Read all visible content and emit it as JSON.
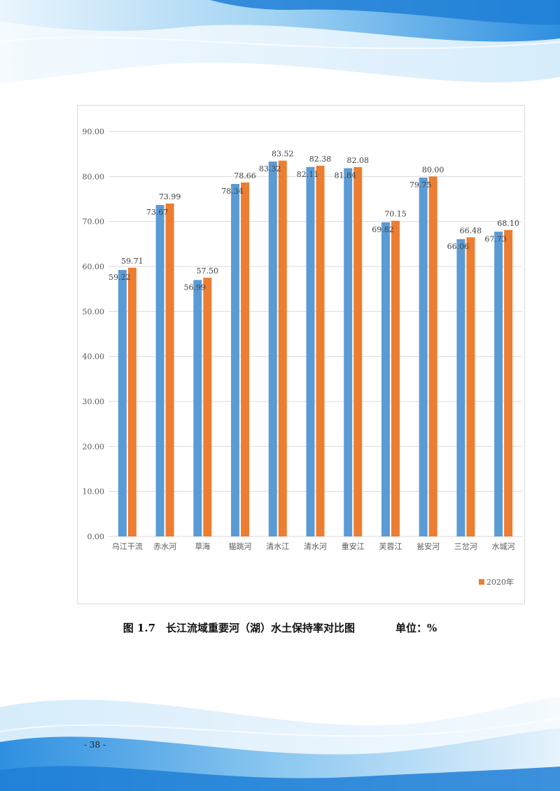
{
  "caption": {
    "figure": "图 1.7　长江流域重要河（湖）水土保持率对比图",
    "unit": "单位：%"
  },
  "page_number": "- 38 -",
  "colors": {
    "series_1": "#5b9bd5",
    "series_2": "#ed7d31",
    "gridline": "#d9d9d9",
    "wave_light": "#dbeefb",
    "wave_mid": "#8cc8f0",
    "wave_dark": "#2f8fe0"
  },
  "chart_data": {
    "type": "bar",
    "categories": [
      "乌江干流",
      "赤水河",
      "草海",
      "猫跳河",
      "清水江",
      "清水河",
      "重安江",
      "芙蓉江",
      "瓮安河",
      "三岔河",
      "水城河"
    ],
    "series": [
      {
        "values": [
          59.22,
          73.67,
          56.99,
          78.34,
          83.32,
          82.11,
          81.84,
          69.82,
          79.75,
          66.06,
          67.73
        ]
      },
      {
        "name": "2020年",
        "values": [
          59.71,
          73.99,
          57.5,
          78.66,
          83.52,
          82.38,
          82.08,
          70.15,
          80.0,
          66.48,
          68.1
        ]
      }
    ],
    "yticks": [
      "0.00",
      "10.00",
      "20.00",
      "30.00",
      "40.00",
      "50.00",
      "60.00",
      "70.00",
      "80.00",
      "90.00"
    ],
    "ylim": [
      0,
      90
    ],
    "grid": true,
    "legend_position": "bottom-right"
  }
}
